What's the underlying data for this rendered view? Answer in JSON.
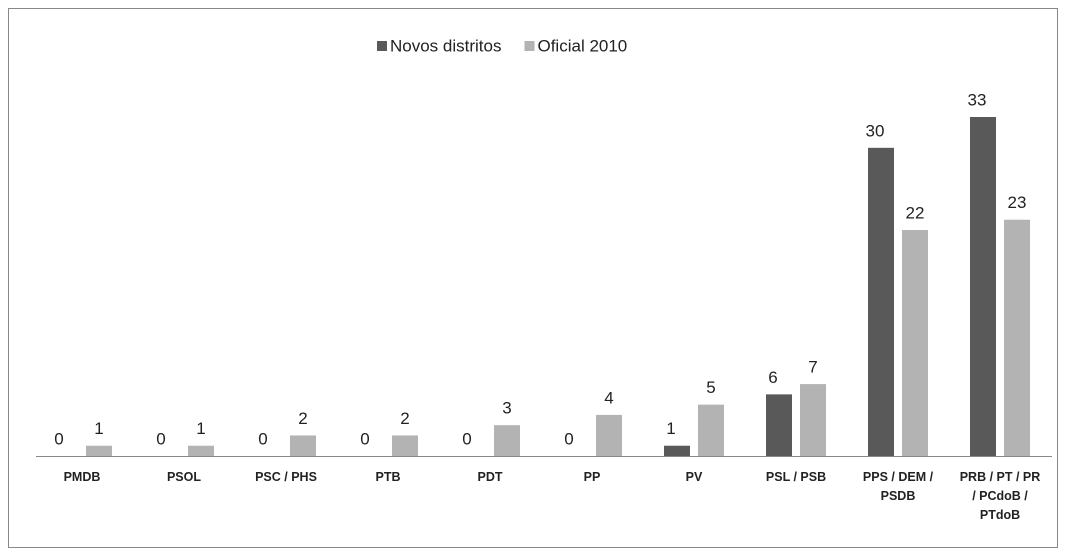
{
  "chart_data": {
    "type": "bar",
    "categories": [
      "PMDB",
      "PSOL",
      "PSC / PHS",
      "PTB",
      "PDT",
      "PP",
      "PV",
      "PSL / PSB",
      "PPS / DEM / PSDB",
      "PRB / PT / PR / PCdoB / PTdoB"
    ],
    "series": [
      {
        "name": "Novos distritos",
        "color": "#595959",
        "values": [
          0,
          0,
          0,
          0,
          0,
          0,
          1,
          6,
          30,
          33
        ]
      },
      {
        "name": "Oficial 2010",
        "color": "#b3b3b3",
        "values": [
          1,
          1,
          2,
          2,
          3,
          4,
          5,
          7,
          22,
          23
        ]
      }
    ],
    "legend": "top"
  }
}
